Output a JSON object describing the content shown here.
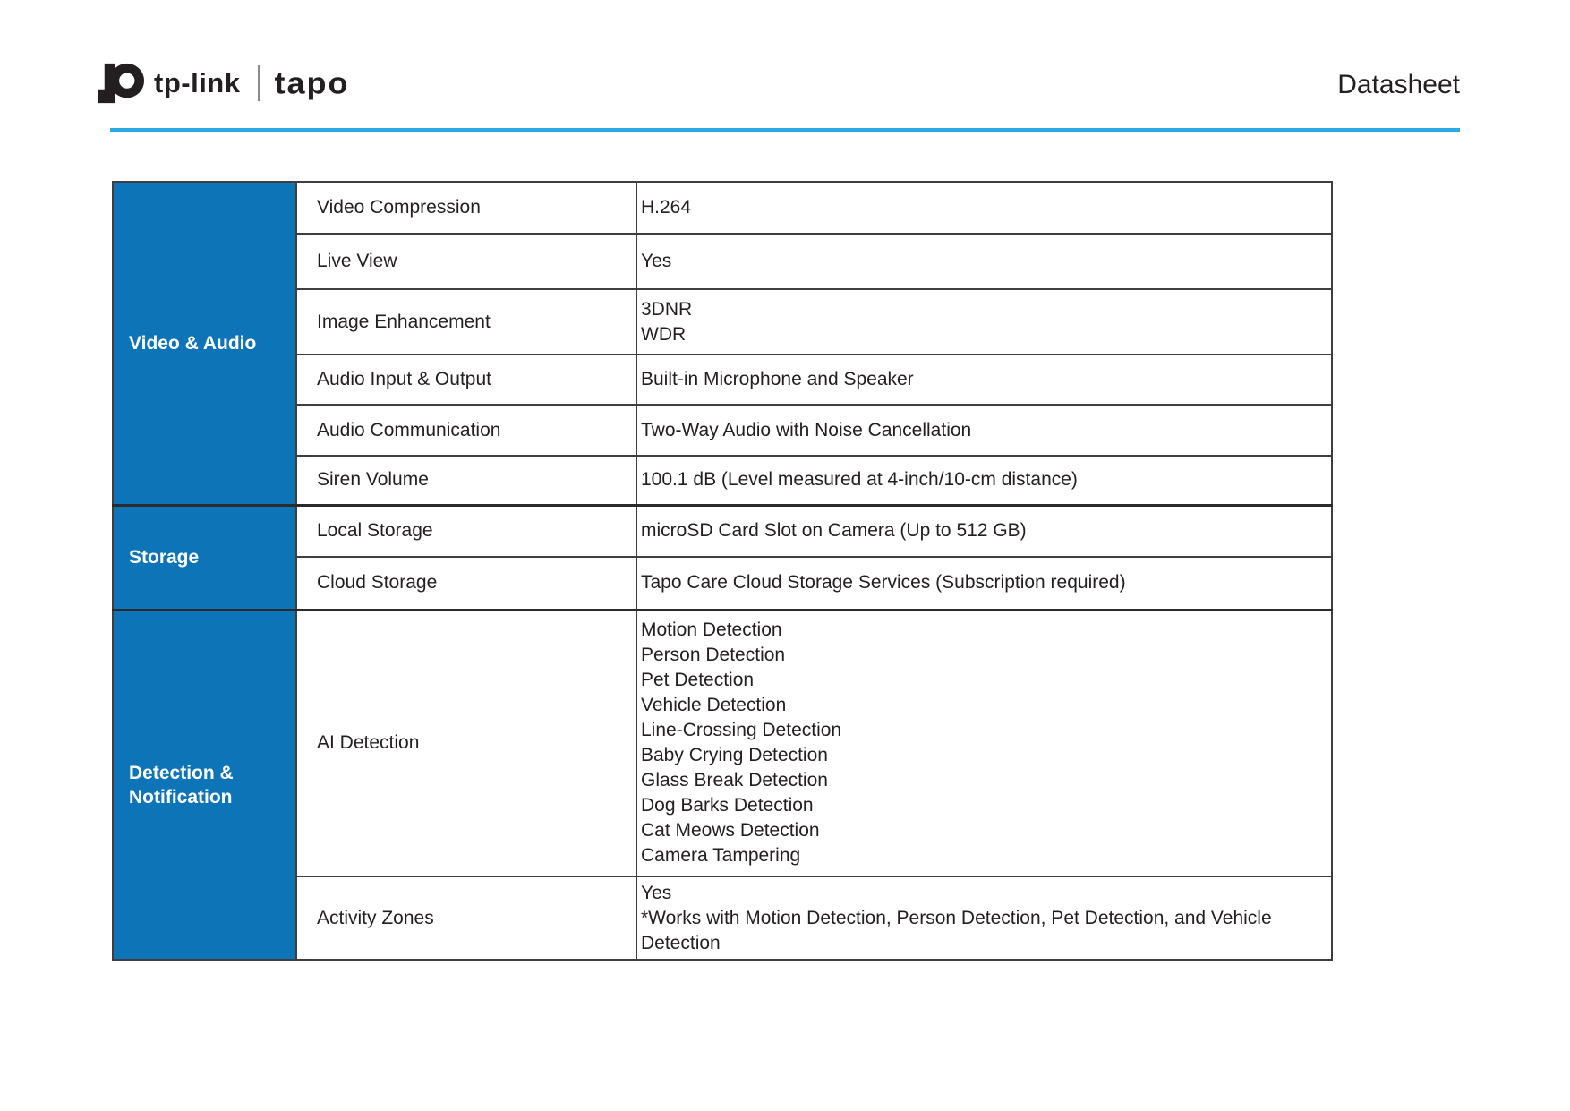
{
  "header": {
    "brand": {
      "logo_icon": "tp-link-logo",
      "brand_text": "tp-link",
      "sub_brand": "tapo"
    },
    "doc_label": "Datasheet",
    "rule_color": "#29abe2"
  },
  "colors": {
    "section_bg": "#0e74b8",
    "section_text": "#ffffff",
    "body_text": "#231f20",
    "border": "#3e3e3e",
    "header_rule": "#29abe2"
  },
  "table": {
    "sections": [
      {
        "title": "Video & Audio",
        "rows": [
          {
            "label": "Video Compression",
            "value": "H.264"
          },
          {
            "label": "Live View",
            "value": "Yes"
          },
          {
            "label": "Image Enhancement",
            "value": "3DNR\nWDR"
          },
          {
            "label": "Audio Input & Output",
            "value": "Built-in Microphone and Speaker"
          },
          {
            "label": "Audio Communication",
            "value": "Two-Way Audio with Noise Cancellation"
          },
          {
            "label": "Siren Volume",
            "value": "100.1 dB (Level measured at 4-inch/10-cm distance)"
          }
        ]
      },
      {
        "title": "Storage",
        "rows": [
          {
            "label": "Local Storage",
            "value": "microSD Card Slot on Camera  (Up to 512 GB)"
          },
          {
            "label": "Cloud Storage",
            "value": "Tapo Care Cloud Storage Services (Subscription required)"
          }
        ]
      },
      {
        "title": "Detection & Notification",
        "rows": [
          {
            "label": "AI Detection",
            "value": "Motion Detection\nPerson Detection\nPet Detection\nVehicle Detection\nLine-Crossing Detection\nBaby Crying Detection\nGlass Break Detection\nDog Barks Detection\nCat Meows Detection\nCamera Tampering"
          },
          {
            "label": "Activity Zones",
            "value": "Yes\n*Works with Motion Detection, Person Detection,  Pet Detection, and Vehicle Detection"
          }
        ]
      }
    ]
  }
}
